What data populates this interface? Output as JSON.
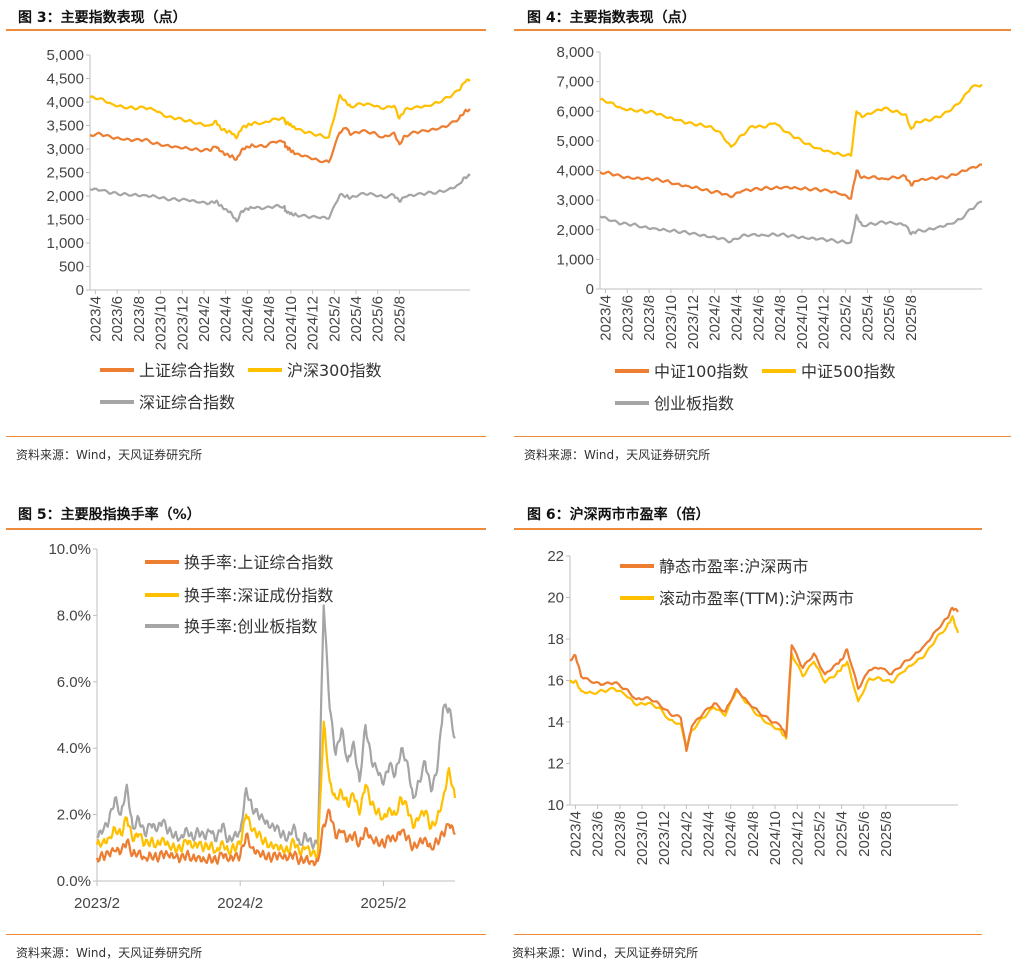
{
  "figures": [
    {
      "title": "图 3：主要指数表现（点）",
      "source": "资料来源：Wind，天风证券研究所"
    },
    {
      "title": "图 4：主要指数表现（点）",
      "source": "资料来源：Wind，天风证券研究所"
    },
    {
      "title": "图 5：主要股指换手率（%）",
      "source": "资料来源：Wind，天风证券研究所"
    },
    {
      "title": "图 6：沪深两市市盈率（倍）",
      "source": "资料来源：Wind，天风证券研究所"
    }
  ],
  "colors": {
    "orange": "#ed7d31",
    "yellow": "#ffc000",
    "gray": "#a5a5a5",
    "rule": "#ef8a3a"
  },
  "chart_data": [
    {
      "type": "line",
      "title": "图 3：主要指数表现（点）",
      "ylim": [
        0,
        5000
      ],
      "yticks": [
        "0",
        "500",
        "1,000",
        "1,500",
        "2,000",
        "2,500",
        "3,000",
        "3,500",
        "4,000",
        "4,500",
        "5,000"
      ],
      "yticks_values": [
        0,
        500,
        1000,
        1500,
        2000,
        2500,
        3000,
        3500,
        4000,
        4500,
        5000
      ],
      "xticks": [
        "2023/4",
        "2023/6",
        "2023/8",
        "2023/10",
        "2023/12",
        "2024/2",
        "2024/4",
        "2024/6",
        "2024/8",
        "2024/10",
        "2024/12",
        "2025/2",
        "2025/4",
        "2025/6",
        "2025/8"
      ],
      "x": [
        0,
        1,
        2,
        3,
        4,
        5,
        6,
        7,
        8,
        9,
        10,
        11,
        11.6,
        12,
        12.5,
        13,
        13.5,
        14,
        14.5,
        15,
        16,
        17,
        17.9,
        18,
        18.3,
        18.6,
        19,
        20,
        21,
        22,
        23,
        23.6,
        24,
        25,
        26,
        27,
        28,
        28.5,
        29,
        30,
        31,
        32,
        33,
        34,
        34.5,
        35
      ],
      "xunit": "months since 2023/4",
      "series": [
        {
          "name": "上证综合指数",
          "color": "orange",
          "values": [
            3300,
            3320,
            3240,
            3200,
            3180,
            3200,
            3120,
            3080,
            3050,
            3020,
            2980,
            2970,
            3050,
            2950,
            2880,
            2850,
            2780,
            3000,
            3050,
            3080,
            3050,
            3150,
            3150,
            3040,
            3010,
            2950,
            2900,
            2850,
            2760,
            2720,
            3350,
            3450,
            3300,
            3380,
            3350,
            3250,
            3350,
            3100,
            3280,
            3360,
            3380,
            3420,
            3500,
            3650,
            3800,
            3850
          ]
        },
        {
          "name": "沪深300指数",
          "color": "yellow",
          "values": [
            4100,
            4080,
            3960,
            3900,
            3870,
            3880,
            3820,
            3680,
            3650,
            3600,
            3550,
            3500,
            3600,
            3450,
            3380,
            3350,
            3230,
            3450,
            3500,
            3550,
            3560,
            3650,
            3650,
            3560,
            3540,
            3480,
            3420,
            3350,
            3300,
            3250,
            4150,
            4000,
            3900,
            3960,
            3930,
            3850,
            3920,
            3650,
            3840,
            3900,
            3920,
            3990,
            4100,
            4250,
            4420,
            4480
          ]
        },
        {
          "name": "深证综合指数",
          "color": "gray",
          "values": [
            2140,
            2120,
            2060,
            2040,
            2030,
            2020,
            2000,
            1940,
            1920,
            1910,
            1860,
            1840,
            1890,
            1800,
            1720,
            1650,
            1460,
            1680,
            1720,
            1750,
            1730,
            1780,
            1780,
            1680,
            1660,
            1620,
            1600,
            1560,
            1540,
            1520,
            2020,
            2000,
            1960,
            2060,
            2050,
            1980,
            2020,
            1880,
            1980,
            2020,
            2060,
            2080,
            2140,
            2250,
            2400,
            2430
          ]
        }
      ],
      "legend": [
        "上证综合指数",
        "沪深300指数",
        "深证综合指数"
      ]
    },
    {
      "type": "line",
      "title": "图 4：主要指数表现（点）",
      "ylim": [
        0,
        8000
      ],
      "yticks": [
        "0",
        "1,000",
        "2,000",
        "3,000",
        "4,000",
        "5,000",
        "6,000",
        "7,000",
        "8,000"
      ],
      "yticks_values": [
        0,
        1000,
        2000,
        3000,
        4000,
        5000,
        6000,
        7000,
        8000
      ],
      "xticks": [
        "2023/4",
        "2023/6",
        "2023/8",
        "2023/10",
        "2023/12",
        "2024/2",
        "2024/4",
        "2024/6",
        "2024/8",
        "2024/10",
        "2024/12",
        "2025/2",
        "2025/4",
        "2025/6",
        "2025/8"
      ],
      "x": [
        0,
        1,
        2,
        3,
        4,
        5,
        6,
        7,
        8,
        9,
        10,
        11,
        12,
        13,
        14,
        15,
        16,
        17,
        18,
        19,
        20,
        21,
        22,
        23,
        23.5,
        24,
        25,
        26,
        27,
        28,
        28.5,
        29,
        30,
        31,
        32,
        33,
        34,
        35
      ],
      "series": [
        {
          "name": "中证100指数",
          "color": "orange",
          "values": [
            3950,
            3900,
            3780,
            3720,
            3720,
            3700,
            3650,
            3550,
            3480,
            3420,
            3300,
            3250,
            3100,
            3300,
            3350,
            3400,
            3420,
            3450,
            3420,
            3380,
            3350,
            3300,
            3200,
            3050,
            4000,
            3750,
            3800,
            3720,
            3780,
            3800,
            3500,
            3650,
            3700,
            3750,
            3800,
            3950,
            4100,
            4200
          ]
        },
        {
          "name": "中证500指数",
          "color": "yellow",
          "values": [
            6400,
            6300,
            6100,
            6050,
            6000,
            5950,
            5800,
            5700,
            5600,
            5550,
            5500,
            5300,
            4800,
            5200,
            5500,
            5450,
            5600,
            5300,
            5100,
            4900,
            4750,
            4650,
            4550,
            4500,
            6000,
            5800,
            5950,
            6100,
            6000,
            5900,
            5400,
            5650,
            5700,
            5800,
            6000,
            6300,
            6800,
            6900
          ]
        },
        {
          "name": "创业板指数",
          "color": "gray",
          "values": [
            2450,
            2300,
            2200,
            2180,
            2100,
            2050,
            2000,
            1950,
            1900,
            1820,
            1750,
            1700,
            1600,
            1800,
            1850,
            1820,
            1850,
            1820,
            1750,
            1700,
            1680,
            1650,
            1600,
            1580,
            2500,
            2150,
            2200,
            2250,
            2200,
            2150,
            1850,
            1950,
            2000,
            2100,
            2200,
            2350,
            2700,
            2950
          ]
        }
      ],
      "legend": [
        "中证100指数",
        "中证500指数",
        "创业板指数"
      ]
    },
    {
      "type": "line",
      "title": "图 5：主要股指换手率（%）",
      "ylim": [
        0,
        10
      ],
      "yticks": [
        "0.0%",
        "2.0%",
        "4.0%",
        "6.0%",
        "8.0%",
        "10.0%"
      ],
      "yticks_values": [
        0,
        2,
        4,
        6,
        8,
        10
      ],
      "xticks": [
        "2023/2",
        "2024/2",
        "2025/2"
      ],
      "xticks_values": [
        0,
        12,
        24
      ],
      "x": [
        0,
        0.5,
        1,
        1.5,
        2,
        2.5,
        3,
        3.5,
        4,
        4.5,
        5,
        5.5,
        6,
        6.5,
        7,
        7.5,
        8,
        8.5,
        9,
        9.5,
        10,
        10.5,
        11,
        11.5,
        12,
        12.5,
        13,
        13.5,
        14,
        14.5,
        15,
        15.5,
        16,
        16.5,
        17,
        17.5,
        18,
        18.5,
        19,
        19.5,
        20,
        20.5,
        21,
        21.5,
        22,
        22.5,
        23,
        23.5,
        24,
        24.5,
        25,
        25.5,
        26,
        26.5,
        27,
        27.5,
        28,
        28.5,
        29,
        29.5,
        30
      ],
      "series": [
        {
          "name": "换手率:上证综合指数",
          "color": "orange",
          "values": [
            0.7,
            0.75,
            0.8,
            0.9,
            0.85,
            1.2,
            0.8,
            0.9,
            0.7,
            0.8,
            0.7,
            0.8,
            0.75,
            0.7,
            0.65,
            0.8,
            0.7,
            0.75,
            0.65,
            0.7,
            0.6,
            0.8,
            0.6,
            0.7,
            0.75,
            1.4,
            1.0,
            0.9,
            0.8,
            0.7,
            0.75,
            0.7,
            0.65,
            0.8,
            0.6,
            0.7,
            0.6,
            0.6,
            1.7,
            2.1,
            1.3,
            1.5,
            1.2,
            1.4,
            1.1,
            1.6,
            1.3,
            1.2,
            1.1,
            1.3,
            1.2,
            1.5,
            1.3,
            1.0,
            1.2,
            1.3,
            1.0,
            1.2,
            1.4,
            1.7,
            1.4
          ]
        },
        {
          "name": "换手率:深证成份指数",
          "color": "yellow",
          "values": [
            1.1,
            1.2,
            1.3,
            1.6,
            1.4,
            1.9,
            1.2,
            1.4,
            1.1,
            1.2,
            1.1,
            1.3,
            1.1,
            1.0,
            0.95,
            1.2,
            1.0,
            1.1,
            1.0,
            1.1,
            0.9,
            1.2,
            0.9,
            1.0,
            1.1,
            2.0,
            1.5,
            1.4,
            1.2,
            1.1,
            1.1,
            1.0,
            0.9,
            1.2,
            0.8,
            1.0,
            0.8,
            0.8,
            4.8,
            3.0,
            2.5,
            2.7,
            2.3,
            2.6,
            2.0,
            2.9,
            2.3,
            2.1,
            1.9,
            2.2,
            2.0,
            2.5,
            2.2,
            1.6,
            1.9,
            2.1,
            1.6,
            1.9,
            2.5,
            3.4,
            2.5
          ]
        },
        {
          "name": "换手率:创业板指数",
          "color": "gray",
          "values": [
            1.3,
            1.5,
            1.8,
            2.5,
            2.0,
            2.9,
            1.6,
            1.9,
            1.4,
            1.7,
            1.5,
            1.8,
            1.5,
            1.4,
            1.3,
            1.6,
            1.3,
            1.5,
            1.3,
            1.5,
            1.2,
            1.7,
            1.2,
            1.4,
            1.5,
            2.8,
            2.2,
            2.0,
            1.8,
            1.6,
            1.6,
            1.4,
            1.3,
            1.7,
            1.1,
            1.4,
            1.1,
            1.1,
            8.3,
            5.2,
            3.8,
            4.6,
            3.6,
            4.2,
            3.0,
            4.7,
            3.6,
            3.3,
            2.9,
            3.5,
            3.2,
            4.0,
            3.6,
            2.5,
            3.0,
            3.6,
            2.7,
            3.3,
            5.2,
            5.2,
            4.3
          ]
        }
      ],
      "legend": [
        "换手率:上证综合指数",
        "换手率:深证成份指数",
        "换手率:创业板指数"
      ]
    },
    {
      "type": "line",
      "title": "图 6：沪深两市市盈率（倍）",
      "ylim": [
        10,
        22
      ],
      "yticks": [
        "10",
        "12",
        "14",
        "16",
        "18",
        "20",
        "22"
      ],
      "yticks_values": [
        10,
        12,
        14,
        16,
        18,
        20,
        22
      ],
      "xticks": [
        "2023/4",
        "2023/6",
        "2023/8",
        "2023/10",
        "2023/12",
        "2024/2",
        "2024/4",
        "2024/6",
        "2024/8",
        "2024/10",
        "2024/12",
        "2025/2",
        "2025/4",
        "2025/6",
        "2025/8"
      ],
      "x": [
        0,
        0.5,
        1,
        2,
        3,
        4,
        5,
        6,
        7,
        8,
        9,
        10,
        10.5,
        11,
        12,
        13,
        14,
        15,
        16,
        17,
        18,
        19,
        19.5,
        20,
        21,
        22,
        23,
        24,
        24.5,
        25,
        26,
        27,
        28,
        29,
        30,
        31,
        32,
        33,
        34,
        34.5,
        35
      ],
      "series": [
        {
          "name": "静态市盈率:沪深两市",
          "color": "orange",
          "values": [
            17.0,
            17.2,
            16.2,
            15.9,
            15.8,
            15.9,
            15.6,
            15.1,
            15.2,
            14.9,
            14.4,
            14.2,
            12.6,
            13.8,
            14.4,
            14.9,
            14.5,
            15.6,
            15.0,
            14.5,
            14.1,
            13.8,
            13.3,
            17.7,
            16.6,
            17.3,
            16.3,
            16.8,
            17.0,
            17.5,
            15.6,
            16.5,
            16.6,
            16.3,
            16.8,
            17.2,
            17.7,
            18.4,
            19.0,
            19.5,
            19.3
          ]
        },
        {
          "name": "滚动市盈率(TTM):沪深两市",
          "color": "yellow",
          "values": [
            15.9,
            16.0,
            15.5,
            15.4,
            15.5,
            15.6,
            15.3,
            14.8,
            14.9,
            14.7,
            14.1,
            13.9,
            12.8,
            13.6,
            14.2,
            14.7,
            14.3,
            15.5,
            14.9,
            14.3,
            13.9,
            13.6,
            13.2,
            17.3,
            16.2,
            16.9,
            15.9,
            16.3,
            16.6,
            16.9,
            15.0,
            16.1,
            16.1,
            15.9,
            16.4,
            16.8,
            17.2,
            18.0,
            18.6,
            19.1,
            18.3
          ]
        }
      ],
      "legend": [
        "静态市盈率:沪深两市",
        "滚动市盈率(TTM):沪深两市"
      ]
    }
  ]
}
